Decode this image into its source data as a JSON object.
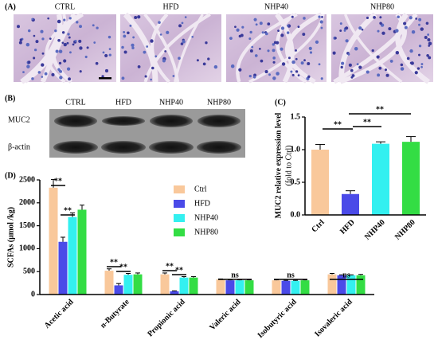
{
  "panel_a": {
    "label": "(A)",
    "titles": [
      "CTRL",
      "HFD",
      "NHP40",
      "NHP80"
    ]
  },
  "panel_b": {
    "label": "(B)",
    "columns": [
      "CTRL",
      "HFD",
      "NHP40",
      "NHP80"
    ],
    "rows": [
      "MUC2",
      "β-actin"
    ]
  },
  "chart_data": [
    {
      "type": "bar",
      "panel_label": "(C)",
      "y_label": "MUC2 relative expression level",
      "y_sublabel": "(fold to Ctrl)",
      "categories": [
        "Ctrl",
        "HFD",
        "NHP40",
        "NHP80"
      ],
      "values": [
        1.0,
        0.32,
        1.09,
        1.12
      ],
      "errors": [
        0.08,
        0.05,
        0.03,
        0.08
      ],
      "colors": [
        "#f9c89b",
        "#4a4ae8",
        "#33f0f0",
        "#33dd44"
      ],
      "ylim": [
        0,
        1.5
      ],
      "yticks": [
        {
          "value": 0,
          "label": "0.0"
        },
        0.5,
        {
          "value": 1,
          "label": "1.0"
        },
        1.5
      ],
      "annotations": [
        "**",
        "**",
        "**"
      ]
    },
    {
      "type": "grouped_bar",
      "panel_label": "(D)",
      "y_label": "SCFAs (μmol /kg)",
      "categories": [
        "Acetic acid",
        "n-Butyrate",
        "Propionic acid",
        "Valeric acid",
        "Isobutyric acid",
        "Isovaleric acid"
      ],
      "series": [
        {
          "name": "Ctrl",
          "color": "#f9c89b",
          "values": [
            2330,
            520,
            440,
            330,
            310,
            440
          ],
          "errors": [
            180,
            40,
            30,
            10,
            10,
            20
          ]
        },
        {
          "name": "HFD",
          "color": "#4a4ae8",
          "values": [
            1150,
            200,
            70,
            310,
            300,
            420
          ],
          "errors": [
            100,
            40,
            10,
            10,
            10,
            10
          ]
        },
        {
          "name": "NHP40",
          "color": "#33f0f0",
          "values": [
            1690,
            430,
            370,
            310,
            300,
            420
          ],
          "errors": [
            90,
            30,
            20,
            10,
            10,
            10
          ]
        },
        {
          "name": "NHP80",
          "color": "#33dd44",
          "values": [
            1850,
            440,
            370,
            310,
            310,
            420
          ],
          "errors": [
            100,
            30,
            20,
            10,
            10,
            20
          ]
        }
      ],
      "ylim": [
        0,
        2500
      ],
      "yticks": [
        0,
        500,
        1000,
        1500,
        2000,
        2500
      ],
      "annotations": [
        "**",
        "**",
        "**",
        "**",
        "**",
        "**",
        "ns",
        "ns",
        "ns"
      ]
    }
  ]
}
